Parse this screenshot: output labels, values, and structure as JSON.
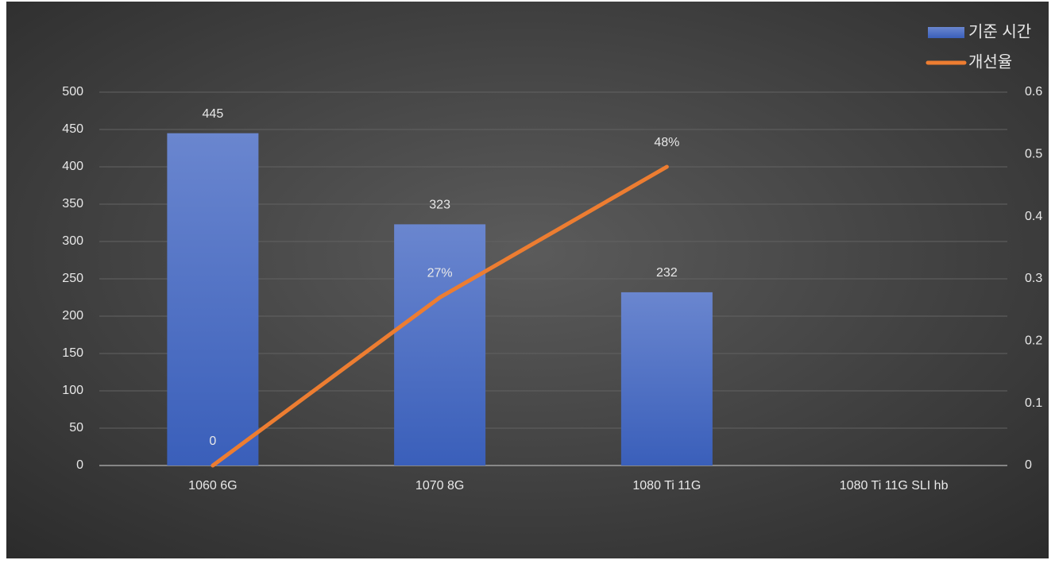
{
  "chart_data": {
    "type": "bar-line",
    "categories": [
      "1060 6G",
      "1070 8G",
      "1080 Ti 11G",
      "1080 Ti 11G SLI hb"
    ],
    "series": [
      {
        "name": "기준 시간",
        "type": "bar",
        "color": "#4472c4",
        "values": [
          445,
          323,
          232,
          null
        ]
      },
      {
        "name": "개선율",
        "type": "line",
        "axis": "y2",
        "color": "#ed7d31",
        "values": [
          0,
          0.27,
          0.48,
          null
        ],
        "value_labels": [
          "0",
          "27%",
          "48%",
          null
        ]
      }
    ],
    "ylim": [
      0,
      500
    ],
    "yticks": [
      0,
      50,
      100,
      150,
      200,
      250,
      300,
      350,
      400,
      450,
      500
    ],
    "y2lim": [
      0,
      0.6
    ],
    "y2ticks": [
      0,
      0.1,
      0.2,
      0.3,
      0.4,
      0.5,
      0.6
    ],
    "grid": true,
    "legend": "top-right"
  }
}
